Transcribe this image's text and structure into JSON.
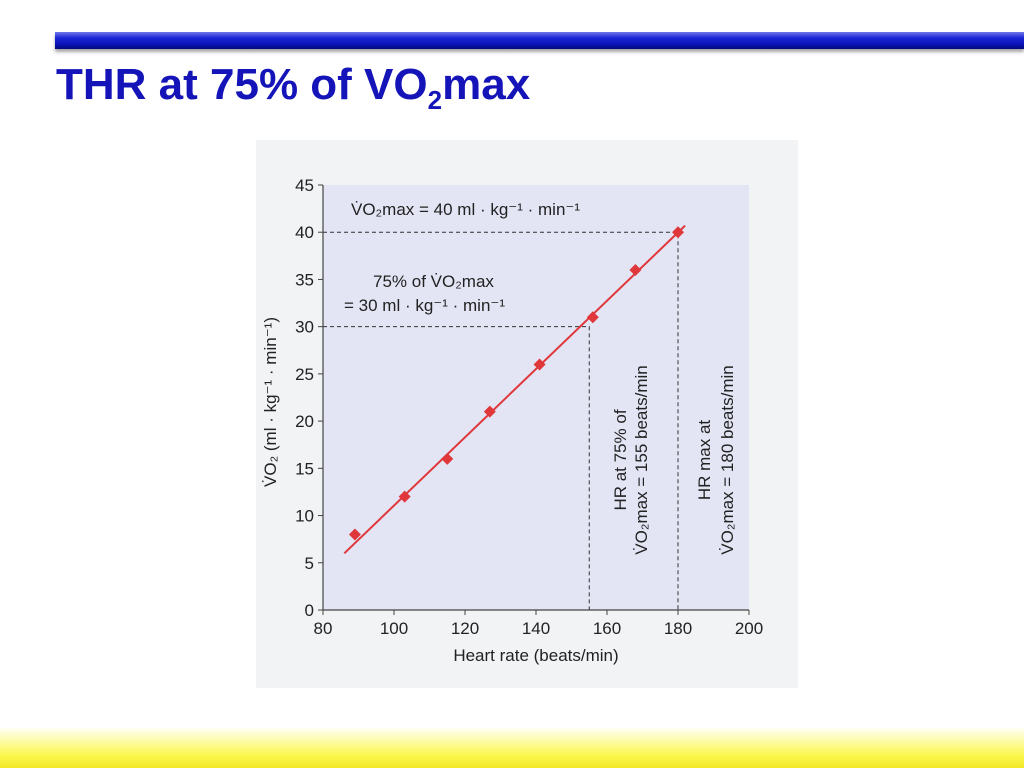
{
  "slide": {
    "title_main": "THR at 75% of VO",
    "title_sub": "2",
    "title_end": "max"
  },
  "chart_data": {
    "type": "scatter",
    "xlabel": "Heart rate (beats/min)",
    "ylabel": "V̇O₂ (ml · kg⁻¹ · min⁻¹)",
    "xlim": [
      80,
      200
    ],
    "ylim": [
      0,
      45
    ],
    "x_ticks": [
      80,
      100,
      120,
      140,
      160,
      180,
      200
    ],
    "y_ticks": [
      0,
      5,
      10,
      15,
      20,
      25,
      30,
      35,
      40,
      45
    ],
    "grid": false,
    "series": [
      {
        "points": [
          {
            "x": 89,
            "y": 8
          },
          {
            "x": 103,
            "y": 12
          },
          {
            "x": 115,
            "y": 16
          },
          {
            "x": 127,
            "y": 21
          },
          {
            "x": 141,
            "y": 26
          },
          {
            "x": 156,
            "y": 31
          },
          {
            "x": 168,
            "y": 36
          },
          {
            "x": 180,
            "y": 40
          }
        ],
        "color": "#e0373b"
      }
    ],
    "trendline": {
      "x": [
        86,
        182
      ],
      "y": [
        6,
        40.7
      ],
      "color": "#e0373b"
    },
    "reference_lines": {
      "vo2max": 40,
      "vo2_75": 30,
      "hr_75": 155,
      "hr_max": 180
    },
    "annotations": {
      "vo2max_label": "V̇O₂max = 40 ml · kg⁻¹ · min⁻¹",
      "pct75_line1": "75% of V̇O₂max",
      "pct75_line2": "= 30 ml · kg⁻¹ · min⁻¹",
      "hr75_line1": "HR at 75% of",
      "hr75_line2": "V̇O₂max = 155 beats/min",
      "hrmax_line1": "HR max at",
      "hrmax_line2": "V̇O₂max = 180 beats/min"
    },
    "colors": {
      "plot_bg": "#e3e5f5",
      "marker": "#e0373b",
      "axis": "#444444",
      "text": "#222222"
    }
  }
}
